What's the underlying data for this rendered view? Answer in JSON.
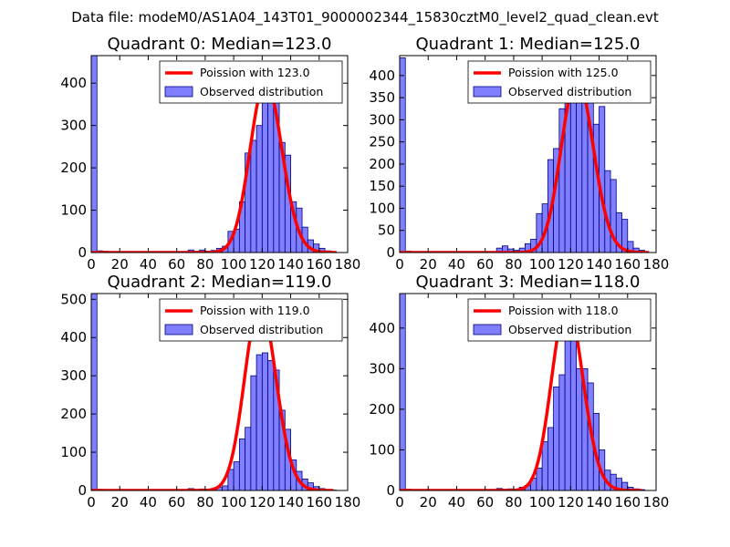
{
  "figure": {
    "suptitle": "Data file: modeM0/AS1A04_143T01_9000002344_15830cztM0_level2_quad_clean.evt"
  },
  "colors": {
    "bar_fill": "#7f7fff",
    "bar_edge": "#000080",
    "fit_line": "#ff0000",
    "axes": "#000000",
    "background": "#ffffff"
  },
  "chart_data": [
    {
      "type": "bar",
      "title": "Quadrant 0: Median=123.0",
      "xlabel": "",
      "ylabel": "",
      "xlim": [
        0,
        180
      ],
      "ylim": [
        0,
        465
      ],
      "xticks": [
        0,
        20,
        40,
        60,
        80,
        100,
        120,
        140,
        160,
        180
      ],
      "yticks": [
        0,
        100,
        200,
        300,
        400
      ],
      "grid": false,
      "legend_position": "top-right",
      "legend": [
        "Poission with 123.0",
        "Observed distribution"
      ],
      "bin_width": 4,
      "bins": [
        [
          0,
          465
        ],
        [
          4,
          4
        ],
        [
          8,
          3
        ],
        [
          12,
          2
        ],
        [
          16,
          1
        ],
        [
          20,
          1
        ],
        [
          24,
          1
        ],
        [
          28,
          1
        ],
        [
          32,
          1
        ],
        [
          36,
          1
        ],
        [
          40,
          1
        ],
        [
          44,
          1
        ],
        [
          48,
          1
        ],
        [
          52,
          1
        ],
        [
          56,
          1
        ],
        [
          60,
          1
        ],
        [
          64,
          1
        ],
        [
          68,
          6
        ],
        [
          72,
          3
        ],
        [
          76,
          6
        ],
        [
          80,
          3
        ],
        [
          84,
          5
        ],
        [
          88,
          10
        ],
        [
          92,
          15
        ],
        [
          96,
          50
        ],
        [
          100,
          55
        ],
        [
          104,
          120
        ],
        [
          108,
          235
        ],
        [
          112,
          265
        ],
        [
          116,
          300
        ],
        [
          120,
          355
        ],
        [
          124,
          400
        ],
        [
          128,
          375
        ],
        [
          132,
          260
        ],
        [
          136,
          230
        ],
        [
          140,
          120
        ],
        [
          144,
          105
        ],
        [
          148,
          60
        ],
        [
          152,
          30
        ],
        [
          156,
          20
        ],
        [
          160,
          10
        ],
        [
          164,
          4
        ],
        [
          168,
          2
        ]
      ],
      "fit": {
        "mean": 123.0,
        "peak": 405,
        "range": [
          0,
          172
        ]
      }
    },
    {
      "type": "bar",
      "title": "Quadrant 1: Median=125.0",
      "xlabel": "",
      "ylabel": "",
      "xlim": [
        0,
        180
      ],
      "ylim": [
        0,
        445
      ],
      "xticks": [
        0,
        20,
        40,
        60,
        80,
        100,
        120,
        140,
        160,
        180
      ],
      "yticks": [
        0,
        50,
        100,
        150,
        200,
        250,
        300,
        350,
        400
      ],
      "grid": false,
      "legend_position": "top-right",
      "legend": [
        "Poission with 125.0",
        "Observed distribution"
      ],
      "bin_width": 4,
      "bins": [
        [
          0,
          440
        ],
        [
          4,
          3
        ],
        [
          8,
          2
        ],
        [
          12,
          1
        ],
        [
          16,
          1
        ],
        [
          20,
          1
        ],
        [
          24,
          1
        ],
        [
          28,
          1
        ],
        [
          32,
          1
        ],
        [
          36,
          1
        ],
        [
          40,
          1
        ],
        [
          44,
          1
        ],
        [
          48,
          1
        ],
        [
          52,
          1
        ],
        [
          56,
          1
        ],
        [
          60,
          1
        ],
        [
          64,
          1
        ],
        [
          68,
          10
        ],
        [
          72,
          15
        ],
        [
          76,
          8
        ],
        [
          80,
          5
        ],
        [
          84,
          10
        ],
        [
          88,
          20
        ],
        [
          92,
          30
        ],
        [
          96,
          88
        ],
        [
          100,
          110
        ],
        [
          104,
          210
        ],
        [
          108,
          235
        ],
        [
          112,
          325
        ],
        [
          116,
          370
        ],
        [
          120,
          350
        ],
        [
          124,
          430
        ],
        [
          128,
          410
        ],
        [
          132,
          365
        ],
        [
          136,
          290
        ],
        [
          140,
          330
        ],
        [
          144,
          185
        ],
        [
          148,
          165
        ],
        [
          152,
          90
        ],
        [
          156,
          75
        ],
        [
          160,
          25
        ],
        [
          164,
          10
        ],
        [
          168,
          5
        ]
      ],
      "fit": {
        "mean": 125.0,
        "peak": 395,
        "range": [
          0,
          175
        ]
      }
    },
    {
      "type": "bar",
      "title": "Quadrant 2: Median=119.0",
      "xlabel": "",
      "ylabel": "",
      "xlim": [
        0,
        180
      ],
      "ylim": [
        0,
        515
      ],
      "xticks": [
        0,
        20,
        40,
        60,
        80,
        100,
        120,
        140,
        160,
        180
      ],
      "yticks": [
        0,
        100,
        200,
        300,
        400,
        500
      ],
      "grid": false,
      "legend_position": "top-right",
      "legend": [
        "Poission with 119.0",
        "Observed distribution"
      ],
      "bin_width": 4,
      "bins": [
        [
          0,
          515
        ],
        [
          4,
          3
        ],
        [
          8,
          2
        ],
        [
          12,
          1
        ],
        [
          16,
          1
        ],
        [
          20,
          1
        ],
        [
          24,
          1
        ],
        [
          28,
          1
        ],
        [
          32,
          1
        ],
        [
          36,
          1
        ],
        [
          40,
          1
        ],
        [
          44,
          1
        ],
        [
          48,
          1
        ],
        [
          52,
          1
        ],
        [
          56,
          1
        ],
        [
          60,
          1
        ],
        [
          64,
          1
        ],
        [
          68,
          5
        ],
        [
          72,
          3
        ],
        [
          76,
          4
        ],
        [
          80,
          3
        ],
        [
          84,
          5
        ],
        [
          88,
          8
        ],
        [
          92,
          12
        ],
        [
          96,
          55
        ],
        [
          100,
          75
        ],
        [
          104,
          135
        ],
        [
          108,
          165
        ],
        [
          112,
          300
        ],
        [
          116,
          355
        ],
        [
          120,
          360
        ],
        [
          124,
          340
        ],
        [
          128,
          315
        ],
        [
          132,
          210
        ],
        [
          136,
          160
        ],
        [
          140,
          80
        ],
        [
          144,
          50
        ],
        [
          148,
          30
        ],
        [
          152,
          20
        ],
        [
          156,
          10
        ],
        [
          160,
          5
        ],
        [
          164,
          2
        ],
        [
          168,
          1
        ]
      ],
      "fit": {
        "mean": 119.0,
        "peak": 490,
        "range": [
          0,
          170
        ]
      }
    },
    {
      "type": "bar",
      "title": "Quadrant 3: Median=118.0",
      "xlabel": "",
      "ylabel": "",
      "xlim": [
        0,
        180
      ],
      "ylim": [
        0,
        485
      ],
      "xticks": [
        0,
        20,
        40,
        60,
        80,
        100,
        120,
        140,
        160,
        180
      ],
      "yticks": [
        0,
        100,
        200,
        300,
        400
      ],
      "grid": false,
      "legend_position": "top-right",
      "legend": [
        "Poission with 118.0",
        "Observed distribution"
      ],
      "bin_width": 4,
      "bins": [
        [
          0,
          485
        ],
        [
          4,
          3
        ],
        [
          8,
          2
        ],
        [
          12,
          1
        ],
        [
          16,
          1
        ],
        [
          20,
          1
        ],
        [
          24,
          1
        ],
        [
          28,
          1
        ],
        [
          32,
          1
        ],
        [
          36,
          1
        ],
        [
          40,
          1
        ],
        [
          44,
          1
        ],
        [
          48,
          1
        ],
        [
          52,
          1
        ],
        [
          56,
          1
        ],
        [
          60,
          1
        ],
        [
          64,
          1
        ],
        [
          68,
          5
        ],
        [
          72,
          3
        ],
        [
          76,
          4
        ],
        [
          80,
          3
        ],
        [
          84,
          8
        ],
        [
          88,
          12
        ],
        [
          92,
          30
        ],
        [
          96,
          55
        ],
        [
          100,
          120
        ],
        [
          104,
          155
        ],
        [
          108,
          255
        ],
        [
          112,
          285
        ],
        [
          116,
          370
        ],
        [
          120,
          415
        ],
        [
          124,
          300
        ],
        [
          128,
          300
        ],
        [
          132,
          265
        ],
        [
          136,
          190
        ],
        [
          140,
          100
        ],
        [
          144,
          50
        ],
        [
          148,
          40
        ],
        [
          152,
          30
        ],
        [
          156,
          20
        ],
        [
          160,
          8
        ],
        [
          164,
          4
        ],
        [
          168,
          2
        ]
      ],
      "fit": {
        "mean": 118.0,
        "peak": 460,
        "range": [
          0,
          170
        ]
      }
    }
  ]
}
